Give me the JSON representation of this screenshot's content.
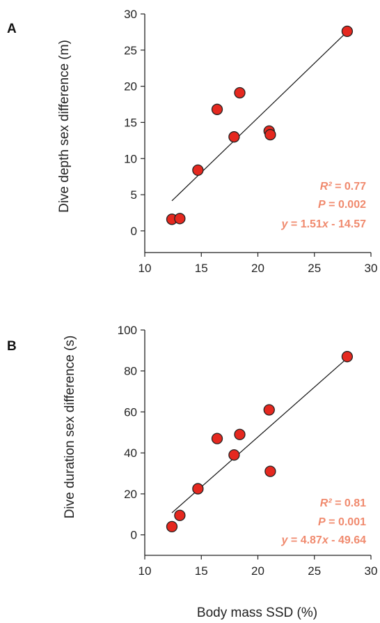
{
  "colors": {
    "point": "#e5281f",
    "stats": "#f08a6e",
    "axis": "#222222"
  },
  "chart_data": [
    {
      "type": "scatter",
      "panel_label": "A",
      "ylabel": "Dive depth sex difference (m)",
      "xlabel": "",
      "xlim": [
        10,
        30
      ],
      "ylim": [
        -3,
        30
      ],
      "xticks": [
        10,
        15,
        20,
        25,
        30
      ],
      "yticks": [
        0,
        5,
        10,
        15,
        20,
        25,
        30
      ],
      "points": [
        {
          "x": 12.4,
          "y": 1.6
        },
        {
          "x": 13.1,
          "y": 1.7
        },
        {
          "x": 14.7,
          "y": 8.4
        },
        {
          "x": 16.4,
          "y": 16.8
        },
        {
          "x": 17.9,
          "y": 13.0
        },
        {
          "x": 18.4,
          "y": 19.1
        },
        {
          "x": 21.0,
          "y": 13.8
        },
        {
          "x": 21.1,
          "y": 13.3
        },
        {
          "x": 27.9,
          "y": 27.6
        }
      ],
      "fit": {
        "slope": 1.51,
        "intercept": -14.57,
        "x_range": [
          12.4,
          27.9
        ]
      },
      "stats": [
        {
          "label": "R²",
          "text": " = 0.77"
        },
        {
          "label": "P",
          "text": " = 0.002"
        },
        {
          "label": "y",
          "text": " = 1.51",
          "extra_var": "x",
          "extra_text": " - 14.57"
        }
      ]
    },
    {
      "type": "scatter",
      "panel_label": "B",
      "ylabel": "Dive duration sex difference (s)",
      "xlabel": "Body mass SSD (%)",
      "xlim": [
        10,
        30
      ],
      "ylim": [
        -10,
        100
      ],
      "xticks": [
        10,
        15,
        20,
        25,
        30
      ],
      "yticks": [
        0,
        20,
        40,
        60,
        80,
        100
      ],
      "points": [
        {
          "x": 12.4,
          "y": 4.0
        },
        {
          "x": 13.1,
          "y": 9.5
        },
        {
          "x": 14.7,
          "y": 22.5
        },
        {
          "x": 16.4,
          "y": 47.0
        },
        {
          "x": 17.9,
          "y": 39.0
        },
        {
          "x": 18.4,
          "y": 49.0
        },
        {
          "x": 21.0,
          "y": 61.0
        },
        {
          "x": 21.1,
          "y": 31.0
        },
        {
          "x": 27.9,
          "y": 87.0
        }
      ],
      "fit": {
        "slope": 4.87,
        "intercept": -49.64,
        "x_range": [
          12.4,
          27.9
        ]
      },
      "stats": [
        {
          "label": "R²",
          "text": " = 0.81"
        },
        {
          "label": "P",
          "text": " = 0.001"
        },
        {
          "label": "y",
          "text": " = 4.87",
          "extra_var": "x",
          "extra_text": " - 49.64"
        }
      ]
    }
  ]
}
